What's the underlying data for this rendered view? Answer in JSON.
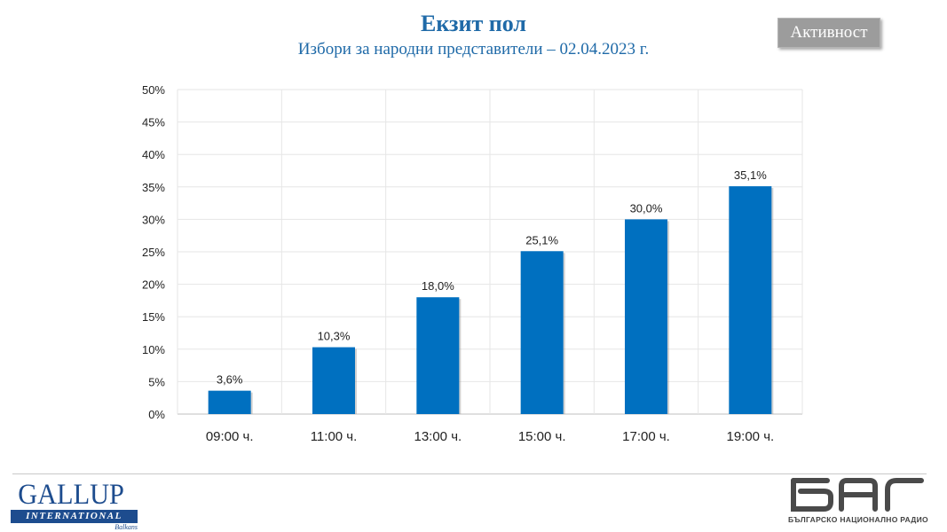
{
  "header": {
    "title": "Екзит пол",
    "subtitle": "Избори за народни представители – 02.04.2023 г.",
    "badge": "Активност"
  },
  "chart_data": {
    "type": "bar",
    "title": "Екзит пол",
    "subtitle": "Избори за народни представители – 02.04.2023 г.",
    "categories": [
      "09:00 ч.",
      "11:00 ч.",
      "13:00 ч.",
      "15:00 ч.",
      "17:00 ч.",
      "19:00 ч."
    ],
    "values": [
      3.6,
      10.3,
      18.0,
      25.1,
      30.0,
      35.1
    ],
    "value_labels": [
      "3,6%",
      "10,3%",
      "18,0%",
      "25,1%",
      "30,0%",
      "35,1%"
    ],
    "ylim": [
      0,
      50
    ],
    "yticks": [
      0,
      5,
      10,
      15,
      20,
      25,
      30,
      35,
      40,
      45,
      50
    ],
    "ytick_labels": [
      "0%",
      "5%",
      "10%",
      "15%",
      "20%",
      "25%",
      "30%",
      "35%",
      "40%",
      "45%",
      "50%"
    ],
    "xlabel": "",
    "ylabel": "",
    "grid": true,
    "bar_color": "#0070c0"
  },
  "footer": {
    "gallup_name": "GALLUP",
    "gallup_band": "INTERNATIONAL",
    "gallup_sub": "Balkans",
    "bnr_text": "БЪЛГАРСКО НАЦИОНАЛНО РАДИО"
  }
}
